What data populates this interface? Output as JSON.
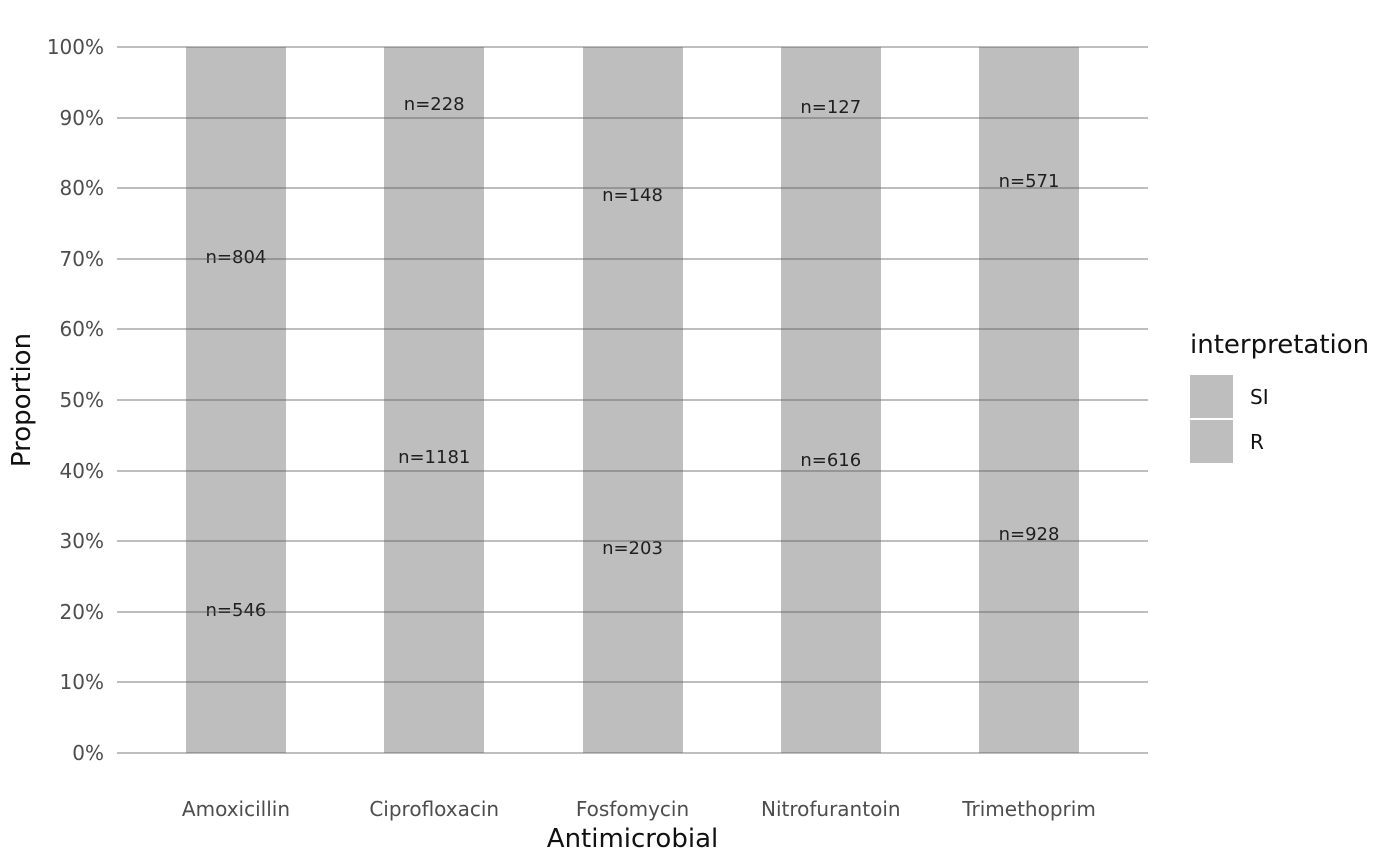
{
  "chart_data": {
    "type": "bar",
    "stacked": true,
    "normalized": true,
    "title": "",
    "xlabel": "Antimicrobial",
    "ylabel": "Proportion",
    "categories": [
      "Amoxicillin",
      "Ciprofloxacin",
      "Fosfomycin",
      "Nitrofurantoin",
      "Trimethoprim"
    ],
    "series": [
      {
        "name": "SI",
        "stack_position": "top",
        "values": [
          804,
          228,
          148,
          127,
          571
        ],
        "labels": [
          "n=804",
          "n=228",
          "n=148",
          "n=127",
          "n=571"
        ]
      },
      {
        "name": "R",
        "stack_position": "bottom",
        "values": [
          546,
          1181,
          203,
          616,
          928
        ],
        "labels": [
          "n=546",
          "n=1181",
          "n=203",
          "n=616",
          "n=928"
        ]
      }
    ],
    "y_ticks": [
      "100%",
      "90%",
      "80%",
      "70%",
      "60%",
      "50%",
      "40%",
      "30%",
      "20%",
      "10%",
      "0%"
    ],
    "ylim_percent": [
      0,
      100
    ],
    "grid": true,
    "legend": {
      "title": "interpretation",
      "position": "right",
      "entries": [
        {
          "label": "SI",
          "color": "#bebebe"
        },
        {
          "label": "R",
          "color": "#bebebe"
        }
      ]
    },
    "colors": {
      "bar_fill": "#bebebe",
      "gridline_base": "#555555",
      "gridline_opacity": 0.38,
      "tick_text": "#4d4d4d",
      "axis_title_text": "#111111",
      "bar_label_text": "#1f1f1f",
      "background": "#ffffff"
    }
  }
}
